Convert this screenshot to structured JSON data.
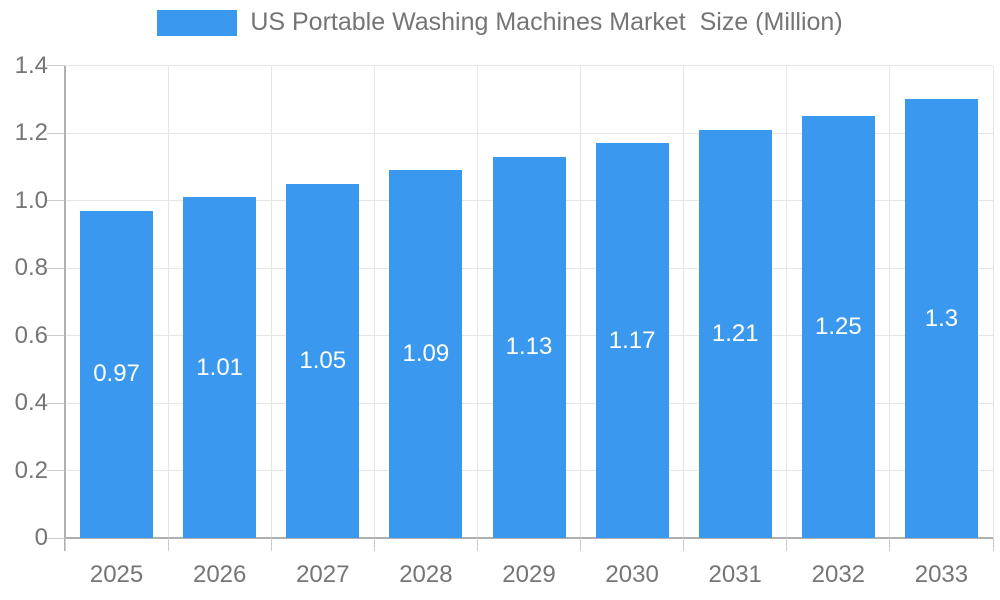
{
  "chart_data": {
    "type": "bar",
    "title": "US Portable Washing Machines Market  Size (Million)",
    "legend_position": "top",
    "categories": [
      "2025",
      "2026",
      "2027",
      "2028",
      "2029",
      "2030",
      "2031",
      "2032",
      "2033"
    ],
    "values": [
      0.97,
      1.01,
      1.05,
      1.09,
      1.13,
      1.17,
      1.21,
      1.25,
      1.3
    ],
    "bar_labels": [
      "0.97",
      "1.01",
      "1.05",
      "1.09",
      "1.13",
      "1.17",
      "1.21",
      "1.25",
      "1.3"
    ],
    "xlabel": "",
    "ylabel": "",
    "ylim": [
      0,
      1.4
    ],
    "ytick_values": [
      0,
      0.2,
      0.4,
      0.6,
      0.8,
      1.0,
      1.2,
      1.4
    ],
    "ytick_labels": [
      "0",
      "0.2",
      "0.4",
      "0.6",
      "0.8",
      "1.0",
      "1.2",
      "1.4"
    ],
    "grid": "on",
    "colors": {
      "bar": "#3A99EE",
      "bar_label_text": "#ffffff",
      "axis_text": "#757575",
      "gridline": "#e6e6e6",
      "axis_line": "#b0b0b0",
      "tick_mark": "#cccccc",
      "background": "#ffffff"
    }
  }
}
